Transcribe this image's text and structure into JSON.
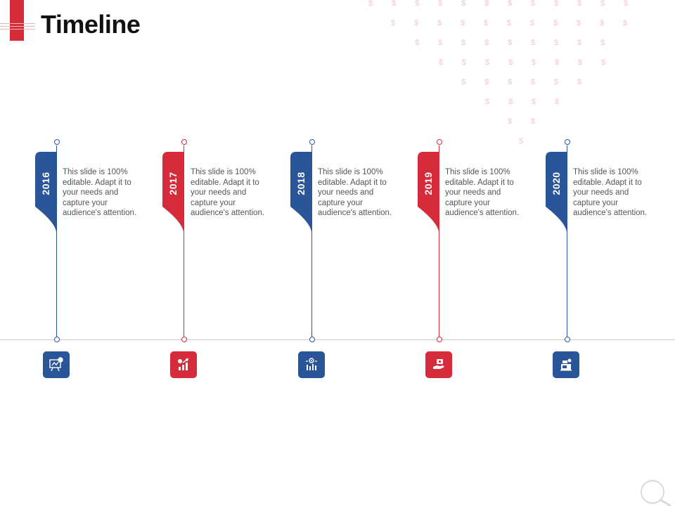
{
  "slide": {
    "title": "Timeline"
  },
  "colors": {
    "blue": "#2a5699",
    "red": "#d62b3a"
  },
  "milestones": [
    {
      "year": "2016",
      "text": "This slide is 100% editable. Adapt it to your needs and capture your audience's attention.",
      "color": "#2a5699",
      "icon": "presentation-board-icon"
    },
    {
      "year": "2017",
      "text": "This slide is 100% editable. Adapt it to your needs and capture your audience's attention.",
      "color": "#d62b3a",
      "icon": "growth-chart-icon"
    },
    {
      "year": "2018",
      "text": "This slide is 100% editable. Adapt it to your needs and capture your audience's attention.",
      "color": "#2a5699",
      "icon": "bar-chart-target-icon"
    },
    {
      "year": "2019",
      "text": "This slide is 100% editable. Adapt it to your needs and capture your audience's attention.",
      "color": "#d62b3a",
      "icon": "hand-money-icon"
    },
    {
      "year": "2020",
      "text": "This slide is 100% editable. Adapt it to your needs and capture your audience's attention.",
      "color": "#2a5699",
      "icon": "cash-register-icon"
    }
  ]
}
